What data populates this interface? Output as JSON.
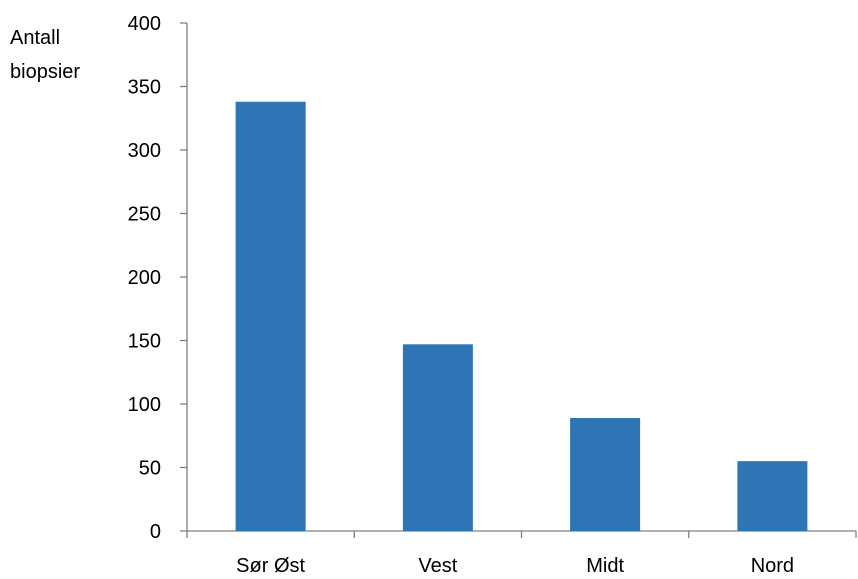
{
  "chart_data": {
    "type": "bar",
    "title": "",
    "xlabel": "",
    "ylabel_lines": [
      "Antall",
      "biopsier"
    ],
    "categories": [
      "Sør Øst",
      "Vest",
      "Midt",
      "Nord"
    ],
    "values": [
      338,
      147,
      89,
      55
    ],
    "ylim": [
      0,
      400
    ],
    "yticks": [
      "0",
      "50",
      "100",
      "150",
      "200",
      "250",
      "300",
      "350",
      "400"
    ],
    "ytick_values": [
      0,
      50,
      100,
      150,
      200,
      250,
      300,
      350,
      400
    ],
    "grid": false,
    "legend": "none",
    "bar_color": "#2E75B6",
    "axis_color": "#808080"
  }
}
